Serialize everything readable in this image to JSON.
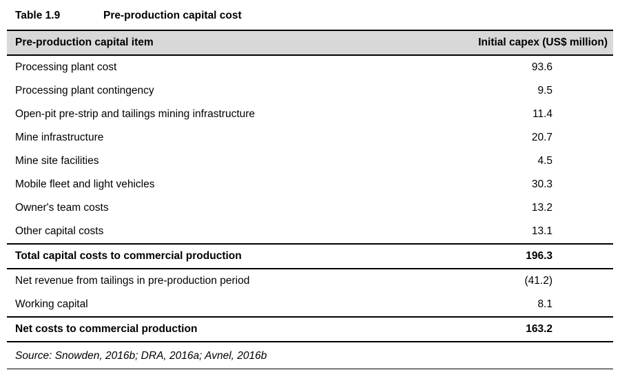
{
  "page": {
    "background": "#ffffff",
    "header_bg": "#d8d8d8",
    "border_color": "#000000"
  },
  "caption": {
    "label": "Table 1.9",
    "title": "Pre-production capital cost"
  },
  "table": {
    "header": {
      "item": "Pre-production capital item",
      "value": "Initial capex (US$ million)"
    },
    "rows": [
      {
        "item": "Processing plant cost",
        "value": "93.6",
        "emphasis": false
      },
      {
        "item": "Processing plant contingency",
        "value": "9.5",
        "emphasis": false
      },
      {
        "item": "Open-pit pre-strip and tailings mining infrastructure",
        "value": "11.4",
        "emphasis": false
      },
      {
        "item": "Mine infrastructure",
        "value": "20.7",
        "emphasis": false
      },
      {
        "item": "Mine site facilities",
        "value": "4.5",
        "emphasis": false
      },
      {
        "item": "Mobile fleet and light vehicles",
        "value": "30.3",
        "emphasis": false
      },
      {
        "item": "Owner's team costs",
        "value": "13.2",
        "emphasis": false
      },
      {
        "item": "Other capital costs",
        "value": "13.1",
        "emphasis": false
      },
      {
        "item": "Total capital costs to commercial production",
        "value": "196.3",
        "emphasis": true
      },
      {
        "item": "Net revenue from tailings in pre-production period",
        "value": "(41.2)",
        "emphasis": false
      },
      {
        "item": "Working capital",
        "value": "8.1",
        "emphasis": false
      },
      {
        "item": "Net costs to commercial production",
        "value": "163.2",
        "emphasis": true
      }
    ]
  },
  "source": "Source: Snowden, 2016b; DRA, 2016a; Avnel, 2016b"
}
